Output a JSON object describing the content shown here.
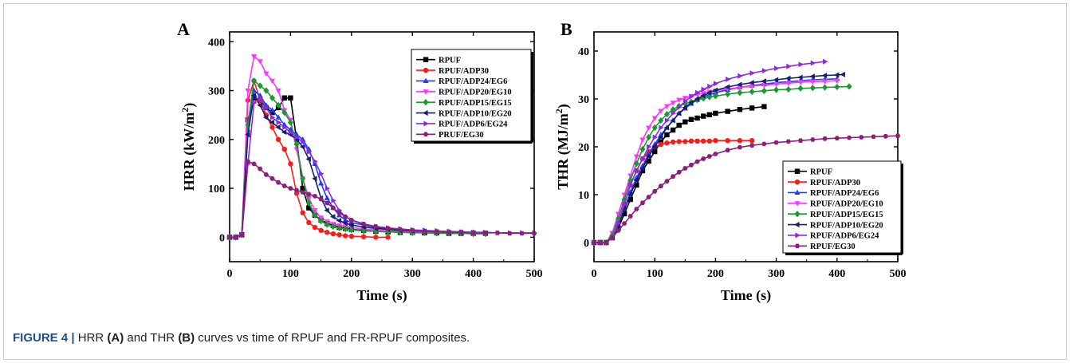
{
  "colors": {
    "RPUF": "#000000",
    "RPUF/ADP30": "#ff1a1a",
    "RPUF/ADP24/EG6": "#1a3cff",
    "RPUF/ADP20/EG10": "#ff33ff",
    "RPUF/ADP15/EG15": "#1a9a2e",
    "RPUF/ADP10/EG20": "#14206e",
    "RPUF/ADP6/EG24": "#8a2be2",
    "PRUF/EG30": "#8b1f7a",
    "RPUF/EG30": "#8b1f7a",
    "caption_label": "#1f4e8c"
  },
  "caption": {
    "label": "FIGURE 4 |",
    "text_1": " HRR ",
    "part_a": "(A)",
    "text_2": " and THR ",
    "part_b": "(B)",
    "text_3": " curves vs time of RPUF and FR-RPUF composites."
  },
  "chart_data": [
    {
      "panel_label": "A",
      "type": "line",
      "xlabel": "Time (s)",
      "ylabel": "HRR (kW/m2)",
      "xlim": [
        0,
        500
      ],
      "ylim": [
        -50,
        420
      ],
      "xticks": [
        0,
        100,
        200,
        300,
        400,
        500
      ],
      "yticks": [
        0,
        100,
        200,
        300,
        400
      ],
      "legend_position": "top-right",
      "series": [
        {
          "name": "RPUF",
          "x": [
            0,
            10,
            20,
            30,
            40,
            50,
            60,
            70,
            80,
            90,
            100,
            110,
            120,
            130,
            140,
            150,
            160,
            170,
            180,
            190,
            200,
            220,
            240,
            260,
            280,
            300,
            320,
            340,
            360,
            380,
            400,
            420
          ],
          "y": [
            0,
            0,
            5,
            240,
            285,
            280,
            265,
            255,
            265,
            285,
            285,
            200,
            100,
            60,
            45,
            35,
            28,
            24,
            20,
            18,
            16,
            14,
            12,
            11,
            10,
            10,
            9,
            9,
            8,
            8,
            8,
            8
          ]
        },
        {
          "name": "RPUF/ADP30",
          "x": [
            0,
            10,
            20,
            30,
            40,
            50,
            60,
            70,
            80,
            90,
            100,
            110,
            120,
            130,
            140,
            150,
            160,
            170,
            180,
            190,
            200,
            220,
            240,
            260
          ],
          "y": [
            0,
            0,
            5,
            280,
            320,
            280,
            250,
            225,
            200,
            180,
            150,
            90,
            50,
            30,
            20,
            14,
            10,
            7,
            5,
            3,
            2,
            1,
            0,
            0
          ]
        },
        {
          "name": "RPUF/ADP24/EG6",
          "x": [
            0,
            10,
            20,
            30,
            40,
            50,
            60,
            70,
            80,
            90,
            100,
            110,
            120,
            130,
            140,
            150,
            160,
            170,
            180,
            190,
            200,
            220,
            240,
            260,
            280,
            300,
            320,
            340,
            360,
            380,
            400
          ],
          "y": [
            0,
            0,
            5,
            220,
            300,
            290,
            270,
            260,
            245,
            230,
            220,
            210,
            200,
            180,
            150,
            110,
            80,
            60,
            45,
            35,
            30,
            25,
            20,
            18,
            16,
            14,
            13,
            12,
            11,
            10,
            10
          ]
        },
        {
          "name": "RPUF/ADP20/EG10",
          "x": [
            0,
            10,
            20,
            30,
            40,
            50,
            60,
            70,
            80,
            90,
            100,
            110,
            120,
            130,
            140,
            150,
            160,
            170,
            180,
            190,
            200,
            220,
            240,
            260,
            280,
            300,
            320,
            340,
            360,
            380,
            400
          ],
          "y": [
            0,
            0,
            5,
            300,
            370,
            360,
            335,
            320,
            300,
            260,
            240,
            180,
            120,
            80,
            55,
            40,
            32,
            27,
            24,
            22,
            20,
            17,
            15,
            13,
            12,
            11,
            10,
            10,
            9,
            9,
            9
          ]
        },
        {
          "name": "RPUF/ADP15/EG15",
          "x": [
            0,
            10,
            20,
            30,
            40,
            50,
            60,
            70,
            80,
            90,
            100,
            110,
            120,
            130,
            140,
            150,
            160,
            170,
            180,
            190,
            200,
            220,
            240,
            260,
            280,
            300,
            320,
            340,
            360,
            380,
            400,
            420
          ],
          "y": [
            0,
            0,
            5,
            230,
            320,
            310,
            300,
            285,
            270,
            255,
            235,
            190,
            120,
            70,
            45,
            33,
            26,
            22,
            19,
            17,
            15,
            13,
            12,
            11,
            10,
            9,
            9,
            8,
            8,
            8,
            7,
            7
          ]
        },
        {
          "name": "RPUF/ADP10/EG20",
          "x": [
            0,
            10,
            20,
            30,
            40,
            50,
            60,
            70,
            80,
            90,
            100,
            110,
            120,
            130,
            140,
            150,
            160,
            170,
            180,
            190,
            200,
            220,
            240,
            260,
            280,
            300,
            320,
            340,
            360,
            380,
            400
          ],
          "y": [
            0,
            0,
            5,
            210,
            290,
            270,
            245,
            235,
            225,
            215,
            210,
            200,
            185,
            160,
            120,
            80,
            55,
            42,
            34,
            29,
            25,
            21,
            18,
            16,
            14,
            13,
            12,
            11,
            10,
            10,
            9
          ]
        },
        {
          "name": "RPUF/ADP6/EG24",
          "x": [
            0,
            10,
            20,
            30,
            40,
            50,
            60,
            70,
            80,
            90,
            100,
            110,
            120,
            130,
            140,
            150,
            160,
            170,
            180,
            190,
            200,
            220,
            240,
            260,
            280,
            300,
            320,
            340,
            360,
            380,
            400,
            420,
            440,
            460,
            480,
            500
          ],
          "y": [
            0,
            0,
            5,
            150,
            275,
            285,
            265,
            245,
            235,
            225,
            215,
            205,
            195,
            175,
            155,
            130,
            100,
            75,
            55,
            42,
            35,
            27,
            22,
            19,
            17,
            15,
            14,
            13,
            12,
            11,
            10,
            10,
            9,
            9,
            9,
            9
          ]
        },
        {
          "name": "PRUF/EG30",
          "x": [
            0,
            10,
            20,
            30,
            40,
            50,
            60,
            70,
            80,
            90,
            100,
            110,
            120,
            130,
            140,
            150,
            160,
            170,
            180,
            190,
            200,
            220,
            240,
            260,
            280,
            300,
            320,
            340,
            360,
            380,
            400,
            420,
            440,
            460,
            480,
            500
          ],
          "y": [
            0,
            0,
            5,
            155,
            150,
            140,
            128,
            120,
            112,
            105,
            100,
            96,
            92,
            88,
            84,
            78,
            70,
            60,
            50,
            42,
            35,
            27,
            22,
            18,
            16,
            14,
            12,
            11,
            10,
            10,
            9,
            9,
            9,
            8,
            8,
            8
          ]
        }
      ]
    },
    {
      "panel_label": "B",
      "type": "line",
      "xlabel": "Time (s)",
      "ylabel": "THR (MJ/m2)",
      "xlim": [
        0,
        500
      ],
      "ylim": [
        -4,
        44
      ],
      "xticks": [
        0,
        100,
        200,
        300,
        400,
        500
      ],
      "yticks": [
        0,
        10,
        20,
        30,
        40
      ],
      "legend_position": "bottom-right",
      "series": [
        {
          "name": "RPUF",
          "x": [
            0,
            10,
            20,
            30,
            40,
            50,
            60,
            70,
            80,
            90,
            100,
            110,
            120,
            130,
            140,
            150,
            160,
            170,
            180,
            190,
            200,
            220,
            240,
            260,
            280
          ],
          "y": [
            0,
            0,
            0,
            1,
            3,
            6,
            9,
            12,
            15,
            17,
            19,
            21,
            22.5,
            23.5,
            24.5,
            25.2,
            25.7,
            26,
            26.4,
            26.7,
            27,
            27.4,
            27.8,
            28.1,
            28.4
          ]
        },
        {
          "name": "RPUF/ADP30",
          "x": [
            0,
            10,
            20,
            30,
            40,
            50,
            60,
            70,
            80,
            90,
            100,
            110,
            120,
            130,
            140,
            150,
            160,
            170,
            180,
            190,
            200,
            220,
            240,
            260
          ],
          "y": [
            0,
            0,
            0,
            1,
            4,
            8,
            12,
            15,
            17.5,
            19,
            20,
            20.5,
            20.8,
            21,
            21.1,
            21.1,
            21.2,
            21.2,
            21.2,
            21.2,
            21.3,
            21.3,
            21.3,
            21.3
          ]
        },
        {
          "name": "RPUF/ADP24/EG6",
          "x": [
            0,
            10,
            20,
            30,
            40,
            50,
            60,
            70,
            80,
            90,
            100,
            110,
            120,
            130,
            140,
            150,
            160,
            170,
            180,
            190,
            200,
            220,
            240,
            260,
            280,
            300,
            320,
            340,
            360,
            380,
            400
          ],
          "y": [
            0,
            0,
            0,
            1,
            3.5,
            7,
            10.5,
            13.5,
            16,
            18.5,
            20.5,
            22.5,
            24,
            25.5,
            27,
            28,
            29,
            29.8,
            30.4,
            30.9,
            31.3,
            31.9,
            32.4,
            32.8,
            33.1,
            33.4,
            33.6,
            33.8,
            34,
            34.1,
            34.2
          ]
        },
        {
          "name": "RPUF/ADP20/EG10",
          "x": [
            0,
            10,
            20,
            30,
            40,
            50,
            60,
            70,
            80,
            90,
            100,
            110,
            120,
            130,
            140,
            150,
            160,
            170,
            180,
            190,
            200,
            220,
            240,
            260,
            280,
            300,
            320,
            340,
            360,
            380,
            400
          ],
          "y": [
            0,
            0,
            0,
            2,
            6,
            10,
            14,
            18,
            21.5,
            24,
            26,
            27.5,
            28.5,
            29.2,
            29.8,
            30.2,
            30.6,
            30.9,
            31.2,
            31.5,
            31.7,
            32.1,
            32.4,
            32.7,
            32.9,
            33.1,
            33.3,
            33.5,
            33.6,
            33.7,
            33.8
          ]
        },
        {
          "name": "RPUF/ADP15/EG15",
          "x": [
            0,
            10,
            20,
            30,
            40,
            50,
            60,
            70,
            80,
            90,
            100,
            110,
            120,
            130,
            140,
            150,
            160,
            170,
            180,
            190,
            200,
            220,
            240,
            260,
            280,
            300,
            320,
            340,
            360,
            380,
            400,
            420
          ],
          "y": [
            0,
            0,
            0,
            1.5,
            5,
            9,
            13,
            16.5,
            19.5,
            22,
            24,
            25.5,
            26.8,
            27.8,
            28.5,
            29,
            29.4,
            29.8,
            30.1,
            30.4,
            30.6,
            31,
            31.3,
            31.5,
            31.7,
            31.9,
            32,
            32.2,
            32.3,
            32.4,
            32.5,
            32.6
          ]
        },
        {
          "name": "RPUF/ADP10/EG20",
          "x": [
            0,
            10,
            20,
            30,
            40,
            50,
            60,
            70,
            80,
            90,
            100,
            110,
            120,
            130,
            140,
            150,
            160,
            170,
            180,
            190,
            200,
            220,
            240,
            260,
            280,
            300,
            320,
            340,
            360,
            380,
            400,
            410
          ],
          "y": [
            0,
            0,
            0,
            1,
            3.5,
            7,
            10,
            13,
            15.5,
            18,
            20,
            22,
            24,
            25.5,
            27,
            28.2,
            29.2,
            30,
            30.7,
            31.3,
            31.8,
            32.5,
            33,
            33.4,
            33.7,
            34,
            34.3,
            34.5,
            34.7,
            34.9,
            35,
            35.1
          ]
        },
        {
          "name": "RPUF/ADP6/EG24",
          "x": [
            0,
            10,
            20,
            30,
            40,
            50,
            60,
            70,
            80,
            90,
            100,
            110,
            120,
            130,
            140,
            150,
            160,
            170,
            180,
            190,
            200,
            220,
            240,
            260,
            280,
            300,
            320,
            340,
            360,
            380
          ],
          "y": [
            0,
            0,
            0,
            1,
            4,
            8,
            12,
            15,
            17.5,
            20,
            22,
            24,
            25.5,
            27,
            28.3,
            29.5,
            30.5,
            31.3,
            32,
            32.6,
            33.2,
            34.1,
            34.8,
            35.4,
            35.9,
            36.4,
            36.8,
            37.2,
            37.5,
            37.8
          ]
        },
        {
          "name": "RPUF/EG30",
          "x": [
            0,
            10,
            20,
            30,
            40,
            50,
            60,
            70,
            80,
            90,
            100,
            110,
            120,
            130,
            140,
            150,
            160,
            170,
            180,
            190,
            200,
            220,
            240,
            260,
            280,
            300,
            320,
            340,
            360,
            380,
            400,
            420,
            440,
            460,
            480,
            500
          ],
          "y": [
            0,
            0,
            0,
            1,
            2.5,
            4,
            5.5,
            7,
            8.3,
            9.5,
            10.7,
            11.8,
            12.8,
            13.8,
            14.7,
            15.5,
            16.2,
            16.9,
            17.5,
            18,
            18.5,
            19.3,
            19.9,
            20.3,
            20.6,
            20.9,
            21.1,
            21.3,
            21.5,
            21.7,
            21.8,
            21.9,
            22,
            22.1,
            22.2,
            22.3
          ]
        }
      ]
    }
  ]
}
